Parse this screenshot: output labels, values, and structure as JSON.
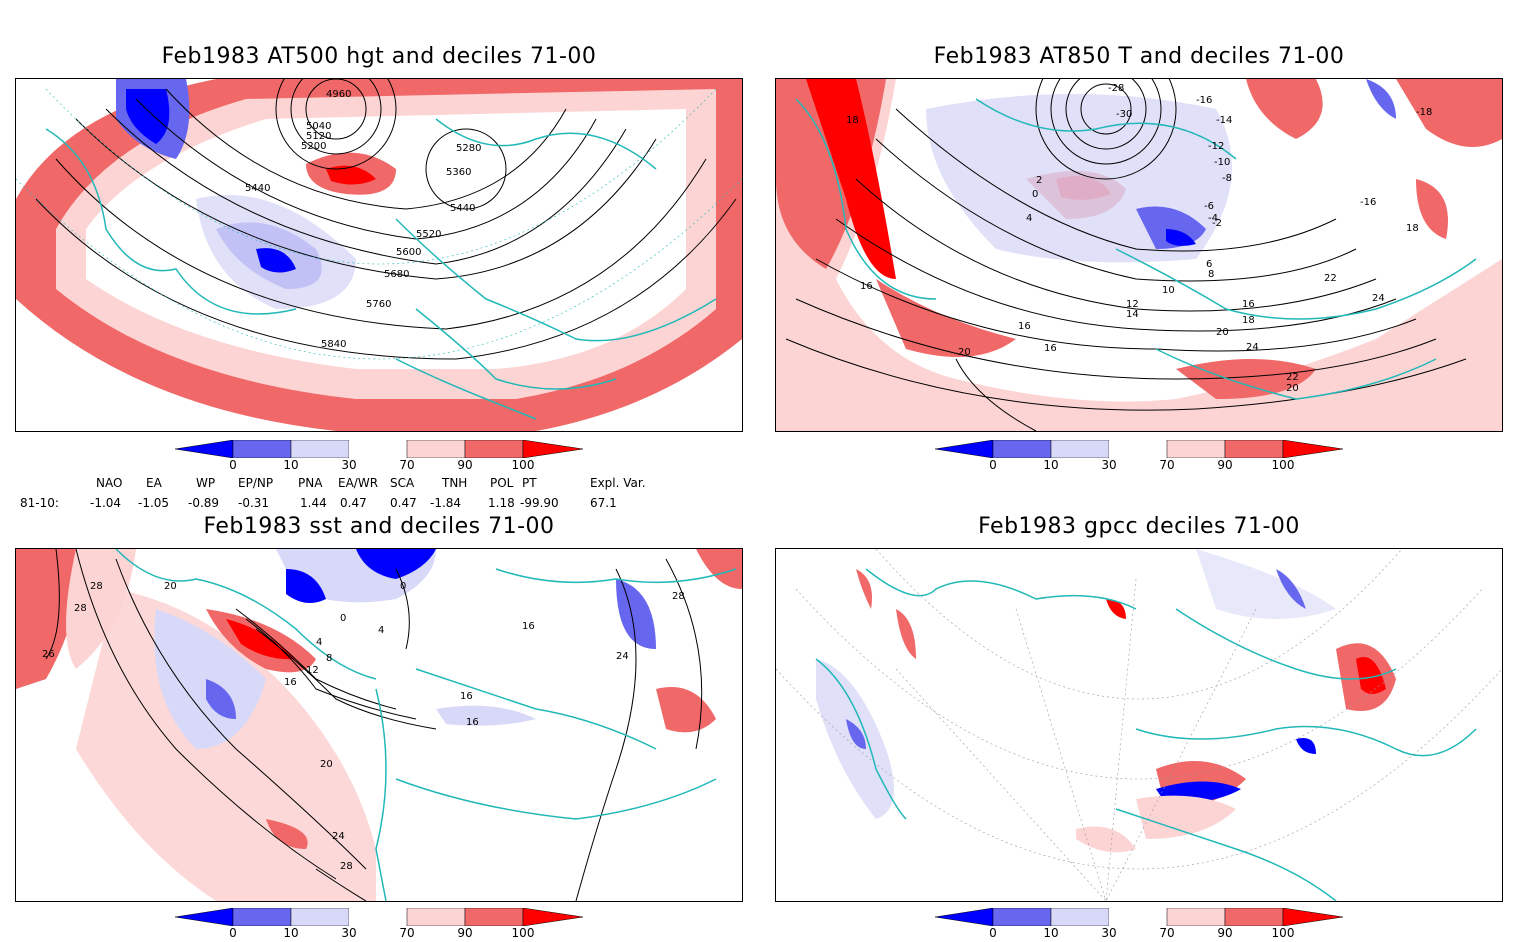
{
  "panels": [
    {
      "title": "Feb1983 AT500 hgt and deciles 71-00",
      "contour_labels": [
        "4960",
        "5040",
        "5120",
        "5200",
        "5280",
        "5360",
        "5440",
        "5440",
        "5520",
        "5600",
        "5680",
        "5760",
        "5840"
      ]
    },
    {
      "title": "Feb1983 AT850 T and deciles 71-00",
      "contour_labels": [
        "-28",
        "-30",
        "-16",
        "-14",
        "-12",
        "-10",
        "-8",
        "-6",
        "-4",
        "-2",
        "0",
        "2",
        "4",
        "6",
        "8",
        "10",
        "12",
        "14",
        "16",
        "18",
        "20",
        "22",
        "24",
        "-18",
        "-16",
        "18",
        "18",
        "16",
        "16",
        "16",
        "20",
        "22",
        "24",
        "20"
      ]
    },
    {
      "title": "Feb1983 sst and deciles 71-00",
      "contour_labels": [
        "28",
        "28",
        "26",
        "20",
        "0",
        "0",
        "4",
        "4",
        "8",
        "12",
        "16",
        "16",
        "20",
        "24",
        "28",
        "28",
        "24",
        "16",
        "16"
      ]
    },
    {
      "title": "Feb1983 gpcc deciles 71-00",
      "contour_labels": []
    }
  ],
  "colorbar": {
    "ticks": [
      "0",
      "10",
      "30",
      "70",
      "90",
      "100"
    ],
    "colors": [
      "#0000ff",
      "#6666ee",
      "#d8d8f8",
      "#ffffff",
      "#fcd4d4",
      "#f06868",
      "#ff0000"
    ]
  },
  "indices": {
    "headers": [
      "NAO",
      "EA",
      "WP",
      "EP/NP",
      "PNA",
      "EA/WR",
      "SCA",
      "TNH",
      "POL",
      "PT",
      "Expl. Var."
    ],
    "row_label": "81-10:",
    "values": [
      "-1.04",
      "-1.05",
      "-0.89",
      "-0.31",
      "1.44",
      "0.47",
      "0.47",
      "-1.84",
      "1.18",
      "-99.90",
      "67.1"
    ]
  },
  "colors": {
    "coastline": "#22b8b8",
    "warm": "#f06868",
    "warm_light": "#fcd4d4",
    "cold": "#6666ee",
    "cold_light": "#d8d8f8",
    "contour": "#000000"
  }
}
